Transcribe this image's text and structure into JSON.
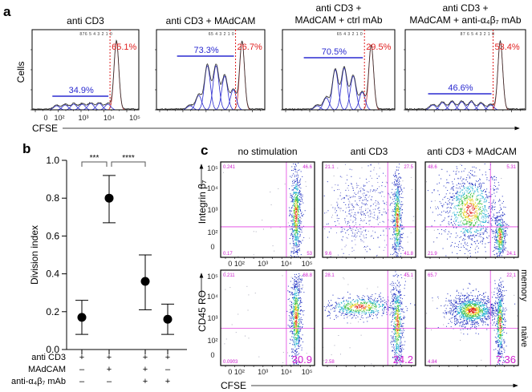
{
  "panel_a": {
    "label": "a",
    "y_label": "Cells",
    "x_label": "CFSE",
    "x_ticks": [
      "0",
      "10²",
      "10³",
      "10⁴",
      "10⁵"
    ],
    "histograms": [
      {
        "title_lines": [
          "anti CD3"
        ],
        "generations": "876 5 4 3 2 1 0",
        "divided_pct": "34.9%",
        "undivided_pct": "65.1%"
      },
      {
        "title_lines": [
          "anti CD3 + MAdCAM"
        ],
        "generations": "65 4 3 2 1 0",
        "divided_pct": "73.3%",
        "undivided_pct": "26.7%"
      },
      {
        "title_lines": [
          "anti CD3 +",
          "MAdCAM + ctrl mAb"
        ],
        "generations": "65 4 3 2 1 0",
        "divided_pct": "70.5%",
        "undivided_pct": "29.5%"
      },
      {
        "title_lines": [
          "anti CD3 +",
          "MAdCAM + anti-α₄β₇ mAb"
        ],
        "generations": "87 6 5 4 3 2 1 0",
        "divided_pct": "46.6%",
        "undivided_pct": "53.4%"
      }
    ]
  },
  "chart_data": {
    "type": "scatter",
    "label": "b",
    "title": "",
    "xlabel": "",
    "ylabel": "Division index",
    "ylim": [
      0,
      1.0
    ],
    "y_ticks": [
      "0.0",
      "0.2",
      "0.4",
      "0.6",
      "0.8",
      "1.0"
    ],
    "condition_rows": [
      {
        "name": "anti CD3",
        "values": [
          "+",
          "+",
          "+",
          "+"
        ]
      },
      {
        "name": "MAdCAM",
        "values": [
          "–",
          "+",
          "+",
          "–"
        ]
      },
      {
        "name": "anti-α₄β₇ mAb",
        "values": [
          "–",
          "–",
          "+",
          "+"
        ]
      }
    ],
    "points": [
      {
        "mean": 0.17,
        "low": 0.08,
        "high": 0.26
      },
      {
        "mean": 0.8,
        "low": 0.67,
        "high": 0.92
      },
      {
        "mean": 0.36,
        "low": 0.21,
        "high": 0.5
      },
      {
        "mean": 0.16,
        "low": 0.08,
        "high": 0.24
      }
    ],
    "significance": [
      {
        "from": 0,
        "to": 1,
        "label": "***"
      },
      {
        "from": 1,
        "to": 2,
        "label": "****"
      }
    ]
  },
  "panel_c": {
    "label": "c",
    "columns": [
      "no stimulation",
      "anti CD3",
      "anti CD3 + MAdCAM"
    ],
    "x_label": "CFSE",
    "x_ticks": [
      "0",
      "10²",
      "10³",
      "10⁴",
      "10⁵"
    ],
    "y_ticks": [
      "10⁵",
      "10⁴",
      "10³",
      "10²",
      "0"
    ],
    "rows": [
      {
        "y_label": "Integrin β₇",
        "quadrants": [
          [
            "0.241",
            "46.6",
            "0.17",
            "53"
          ],
          [
            "21.1",
            "27.5",
            "9.6",
            "41.8"
          ],
          [
            "48.6",
            "5.31",
            "21.9",
            "24.1"
          ]
        ]
      },
      {
        "y_label": "CD45 RO",
        "quadrants": [
          [
            "0.211",
            "68.8",
            "0.0903",
            "30.9"
          ],
          [
            "28.1",
            "45.1",
            "2.58",
            "24.2"
          ],
          [
            "65.7",
            "22.1",
            "4.84",
            "7.36"
          ]
        ]
      }
    ],
    "side_labels": [
      "memory",
      "naive"
    ],
    "quadrant_color": "#d020d0"
  }
}
